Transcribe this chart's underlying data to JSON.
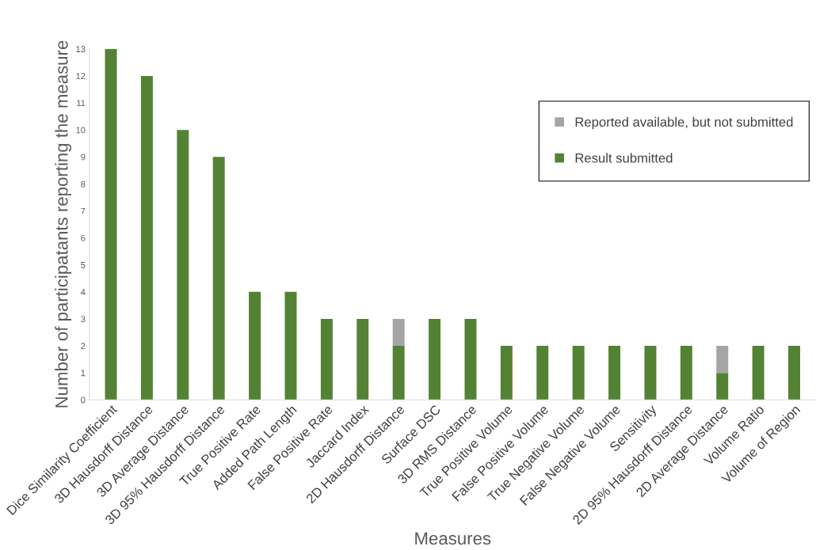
{
  "chart_data": {
    "type": "bar",
    "stacked": true,
    "categories": [
      "Dice Similarity Coefficient",
      "3D Hausdorff Distance",
      "3D Average Distance",
      "3D 95% Hausdorff Distance",
      "True Positive Rate",
      "Added Path Length",
      "False Positive Rate",
      "Jaccard Index",
      "2D Hausdorff Distance",
      "Surface DSC",
      "3D RMS Distance",
      "True Positive Volume",
      "False Positive Volume",
      "True Negative Volume",
      "False Negative Volume",
      "Sensitivity",
      "2D 95% Hausdorff Distance",
      "2D Average Distance",
      "Volume Ratio",
      "Volume of Region"
    ],
    "series": [
      {
        "name": "Result submitted",
        "color": "#548235",
        "values": [
          13,
          12,
          10,
          9,
          4,
          4,
          3,
          3,
          2,
          3,
          3,
          2,
          2,
          2,
          2,
          2,
          2,
          1,
          2,
          2
        ]
      },
      {
        "name": "Reported available, but not submitted",
        "color": "#a5a5a5",
        "values": [
          null,
          null,
          null,
          null,
          null,
          null,
          null,
          null,
          1,
          null,
          null,
          null,
          null,
          null,
          null,
          null,
          null,
          1,
          null,
          null
        ]
      }
    ],
    "xlabel": "Measures",
    "ylabel": "Number of participatants reporting the measure",
    "ylim": [
      0,
      13
    ],
    "yticks": [
      0,
      1,
      2,
      3,
      4,
      5,
      6,
      7,
      8,
      9,
      10,
      11,
      12,
      13
    ],
    "grid": false,
    "legend": "top right"
  }
}
